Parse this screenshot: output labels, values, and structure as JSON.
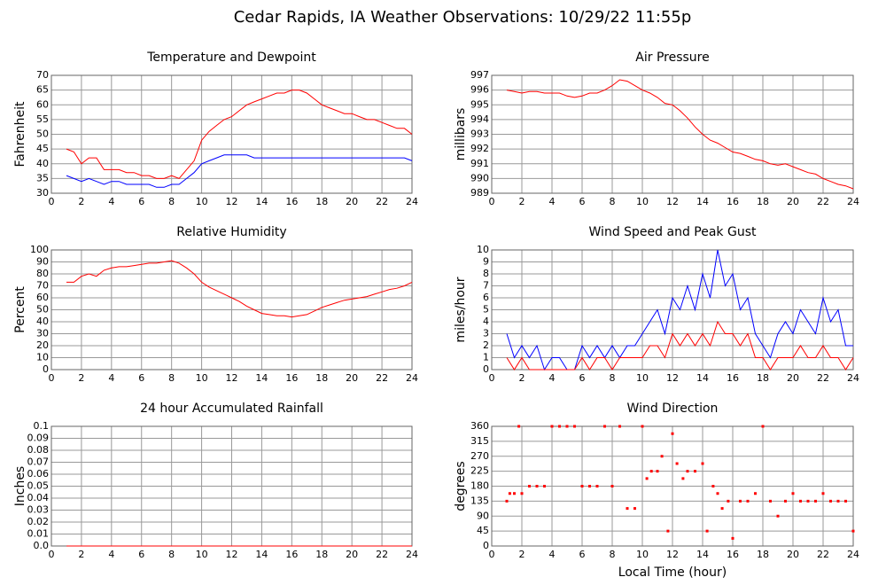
{
  "title": "Cedar Rapids, IA Weather Observations: 10/29/22 11:55p",
  "chart_data": [
    {
      "type": "line",
      "title": "Temperature and Dewpoint",
      "ylabel": "Fahrenheit",
      "x": [
        1,
        1.5,
        2,
        2.5,
        3,
        3.5,
        4,
        4.5,
        5,
        5.5,
        6,
        6.5,
        7,
        7.5,
        8,
        8.5,
        9,
        9.5,
        10,
        10.5,
        11,
        11.5,
        12,
        12.5,
        13,
        13.5,
        14,
        14.5,
        15,
        15.5,
        16,
        16.5,
        17,
        17.5,
        18,
        18.5,
        19,
        19.5,
        20,
        20.5,
        21,
        21.5,
        22,
        22.5,
        23,
        23.5,
        24
      ],
      "series": [
        {
          "color": "#ff0000",
          "values": [
            45,
            44,
            40,
            42,
            42,
            38,
            38,
            38,
            37,
            37,
            36,
            36,
            35,
            35,
            36,
            35,
            38,
            41,
            48,
            51,
            53,
            55,
            56,
            58,
            60,
            61,
            62,
            63,
            64,
            64,
            65,
            65,
            64,
            62,
            60,
            59,
            58,
            57,
            57,
            56,
            55,
            55,
            54,
            53,
            52,
            52,
            50
          ]
        },
        {
          "color": "#0000ff",
          "values": [
            36,
            35,
            34,
            35,
            34,
            33,
            34,
            34,
            33,
            33,
            33,
            33,
            32,
            32,
            33,
            33,
            35,
            37,
            40,
            41,
            42,
            43,
            43,
            43,
            43,
            42,
            42,
            42,
            42,
            42,
            42,
            42,
            42,
            42,
            42,
            42,
            42,
            42,
            42,
            42,
            42,
            42,
            42,
            42,
            42,
            42,
            41
          ]
        }
      ],
      "xlim": [
        0,
        24
      ],
      "xticks": [
        0,
        2,
        4,
        6,
        8,
        10,
        12,
        14,
        16,
        18,
        20,
        22,
        24
      ],
      "ylim": [
        30,
        70
      ],
      "yticks": [
        30,
        35,
        40,
        45,
        50,
        55,
        60,
        65,
        70
      ],
      "grid": true
    },
    {
      "type": "line",
      "title": "Air Pressure",
      "ylabel": "millibars",
      "x": [
        1,
        1.5,
        2,
        2.5,
        3,
        3.5,
        4,
        4.5,
        5,
        5.5,
        6,
        6.5,
        7,
        7.5,
        8,
        8.5,
        9,
        9.5,
        10,
        10.5,
        11,
        11.5,
        12,
        12.5,
        13,
        13.5,
        14,
        14.5,
        15,
        15.5,
        16,
        16.5,
        17,
        17.5,
        18,
        18.5,
        19,
        19.5,
        20,
        20.5,
        21,
        21.5,
        22,
        22.5,
        23,
        23.5,
        24
      ],
      "series": [
        {
          "color": "#ff0000",
          "values": [
            996,
            995.9,
            995.8,
            995.9,
            995.9,
            995.8,
            995.8,
            995.8,
            995.6,
            995.5,
            995.6,
            995.8,
            995.8,
            996,
            996.3,
            996.7,
            996.6,
            996.3,
            996,
            995.8,
            995.5,
            995.1,
            995,
            994.6,
            994.1,
            993.5,
            993,
            992.6,
            992.4,
            992.1,
            991.8,
            991.7,
            991.5,
            991.3,
            991.2,
            991,
            990.9,
            991,
            990.8,
            990.6,
            990.4,
            990.3,
            990,
            989.8,
            989.6,
            989.5,
            989.3
          ]
        }
      ],
      "xlim": [
        0,
        24
      ],
      "xticks": [
        0,
        2,
        4,
        6,
        8,
        10,
        12,
        14,
        16,
        18,
        20,
        22,
        24
      ],
      "ylim": [
        989,
        997
      ],
      "yticks": [
        989,
        990,
        991,
        992,
        993,
        994,
        995,
        996,
        997
      ],
      "grid": true
    },
    {
      "type": "line",
      "title": "Relative Humidity",
      "ylabel": "Percent",
      "x": [
        1,
        1.5,
        2,
        2.5,
        3,
        3.5,
        4,
        4.5,
        5,
        5.5,
        6,
        6.5,
        7,
        7.5,
        8,
        8.5,
        9,
        9.5,
        10,
        10.5,
        11,
        11.5,
        12,
        12.5,
        13,
        13.5,
        14,
        14.5,
        15,
        15.5,
        16,
        16.5,
        17,
        17.5,
        18,
        18.5,
        19,
        19.5,
        20,
        20.5,
        21,
        21.5,
        22,
        22.5,
        23,
        23.5,
        24
      ],
      "series": [
        {
          "color": "#ff0000",
          "values": [
            73,
            73,
            78,
            80,
            78,
            83,
            85,
            86,
            86,
            87,
            88,
            89,
            89,
            90,
            91,
            89,
            85,
            80,
            73,
            69,
            66,
            63,
            60,
            57,
            53,
            50,
            47,
            46,
            45,
            45,
            44,
            45,
            46,
            49,
            52,
            54,
            56,
            58,
            59,
            60,
            61,
            63,
            65,
            67,
            68,
            70,
            73
          ]
        }
      ],
      "xlim": [
        0,
        24
      ],
      "xticks": [
        0,
        2,
        4,
        6,
        8,
        10,
        12,
        14,
        16,
        18,
        20,
        22,
        24
      ],
      "ylim": [
        0,
        100
      ],
      "yticks": [
        0,
        10,
        20,
        30,
        40,
        50,
        60,
        70,
        80,
        90,
        100
      ],
      "grid": true
    },
    {
      "type": "line",
      "title": "Wind Speed and Peak Gust",
      "ylabel": "miles/hour",
      "x": [
        1,
        1.5,
        2,
        2.5,
        3,
        3.5,
        4,
        4.5,
        5,
        5.5,
        6,
        6.5,
        7,
        7.5,
        8,
        8.5,
        9,
        9.5,
        10,
        10.5,
        11,
        11.5,
        12,
        12.5,
        13,
        13.5,
        14,
        14.5,
        15,
        15.5,
        16,
        16.5,
        17,
        17.5,
        18,
        18.5,
        19,
        19.5,
        20,
        20.5,
        21,
        21.5,
        22,
        22.5,
        23,
        23.5,
        24
      ],
      "series": [
        {
          "color": "#0000ff",
          "values": [
            3,
            1,
            2,
            1,
            2,
            0,
            1,
            1,
            0,
            0,
            2,
            1,
            2,
            1,
            2,
            1,
            2,
            2,
            3,
            4,
            5,
            3,
            6,
            5,
            7,
            5,
            8,
            6,
            10,
            7,
            8,
            5,
            6,
            3,
            2,
            1,
            3,
            4,
            3,
            5,
            4,
            3,
            6,
            4,
            5,
            2,
            2
          ]
        },
        {
          "color": "#ff0000",
          "values": [
            1,
            0,
            1,
            0,
            0,
            0,
            0,
            0,
            0,
            0,
            1,
            0,
            1,
            1,
            0,
            1,
            1,
            1,
            1,
            2,
            2,
            1,
            3,
            2,
            3,
            2,
            3,
            2,
            4,
            3,
            3,
            2,
            3,
            1,
            1,
            0,
            1,
            1,
            1,
            2,
            1,
            1,
            2,
            1,
            1,
            0,
            1
          ]
        }
      ],
      "xlim": [
        0,
        24
      ],
      "xticks": [
        0,
        2,
        4,
        6,
        8,
        10,
        12,
        14,
        16,
        18,
        20,
        22,
        24
      ],
      "ylim": [
        0,
        10
      ],
      "yticks": [
        0,
        1,
        2,
        3,
        4,
        5,
        6,
        7,
        8,
        9,
        10
      ],
      "grid": true
    },
    {
      "type": "line",
      "title": "24 hour Accumulated Rainfall",
      "ylabel": "Inches",
      "x": [
        1,
        24
      ],
      "series": [
        {
          "color": "#ff0000",
          "values": [
            0,
            0
          ]
        }
      ],
      "xlim": [
        0,
        24
      ],
      "xticks": [
        0,
        2,
        4,
        6,
        8,
        10,
        12,
        14,
        16,
        18,
        20,
        22,
        24
      ],
      "ylim": [
        0,
        0.1
      ],
      "yticks": [
        {
          "value": 0,
          "label": "0.0"
        },
        0.01,
        0.02,
        0.03,
        0.04,
        0.05,
        0.06,
        0.07,
        0.08,
        0.09,
        0.1
      ],
      "grid": true
    },
    {
      "type": "scatter",
      "title": "Wind Direction",
      "ylabel": "degrees",
      "xlabel": "Local Time (hour)",
      "x": [
        1,
        1.2,
        1.5,
        1.8,
        2,
        2.5,
        3,
        3.5,
        4,
        4.5,
        5,
        5.5,
        6,
        6.5,
        7,
        7.5,
        8,
        8.5,
        9,
        9.5,
        10,
        10.3,
        10.6,
        11,
        11.3,
        11.7,
        12,
        12.3,
        12.7,
        13,
        13.5,
        14,
        14.3,
        14.7,
        15,
        15.3,
        15.7,
        16,
        16.5,
        17,
        17.5,
        18,
        18.5,
        19,
        19.5,
        20,
        20.5,
        21,
        21.5,
        22,
        22.5,
        23,
        23.5,
        24
      ],
      "series": [
        {
          "color": "#ff0000",
          "values": [
            135,
            158,
            158,
            360,
            158,
            180,
            180,
            180,
            360,
            360,
            360,
            360,
            180,
            180,
            180,
            360,
            180,
            360,
            113,
            113,
            360,
            203,
            225,
            225,
            270,
            45,
            338,
            248,
            203,
            225,
            225,
            248,
            45,
            180,
            158,
            113,
            135,
            23,
            135,
            135,
            158,
            360,
            135,
            90,
            135,
            158,
            135,
            135,
            135,
            158,
            135,
            135,
            135,
            45
          ]
        }
      ],
      "xlim": [
        0,
        24
      ],
      "xticks": [
        0,
        2,
        4,
        6,
        8,
        10,
        12,
        14,
        16,
        18,
        20,
        22,
        24
      ],
      "ylim": [
        0,
        360
      ],
      "yticks": [
        0,
        45,
        90,
        135,
        180,
        225,
        270,
        315,
        360
      ],
      "grid": true
    }
  ]
}
